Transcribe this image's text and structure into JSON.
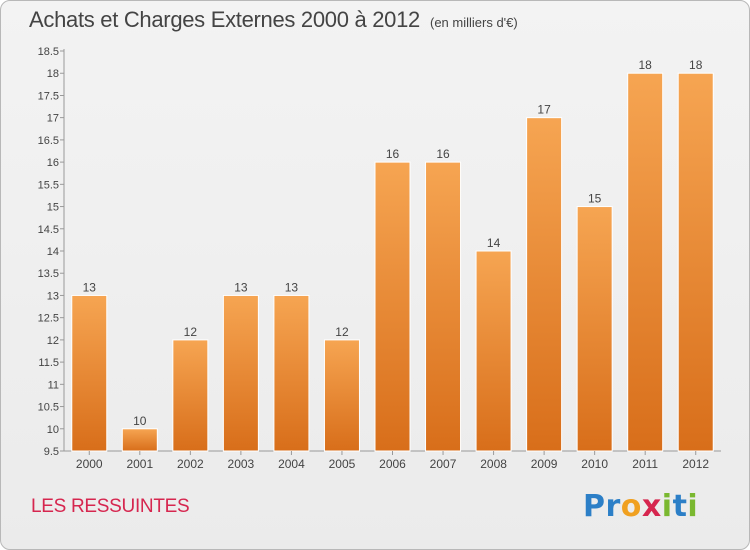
{
  "header": {
    "title": "Achats et Charges Externes 2000 à 2012",
    "unit": "(en milliers d'€)"
  },
  "footer": {
    "place": "LES RESSUINTES",
    "logo_letters": [
      "P",
      "r",
      "o",
      "x",
      "i",
      "t",
      "i"
    ],
    "logo_colors": [
      "#2c7fc7",
      "#2c7fc7",
      "#f0a020",
      "#d6264f",
      "#7ab830",
      "#2c7fc7",
      "#7ab830"
    ]
  },
  "colors": {
    "bar_light": "#f6a552",
    "bar_dark": "#d86e1a",
    "axis": "#999999",
    "text": "#444444"
  },
  "chart_data": {
    "type": "bar",
    "title": "Achats et Charges Externes 2000 à 2012",
    "subtitle": "(en milliers d'€)",
    "categories": [
      "2000",
      "2001",
      "2002",
      "2003",
      "2004",
      "2005",
      "2006",
      "2007",
      "2008",
      "2009",
      "2010",
      "2011",
      "2012"
    ],
    "values": [
      13,
      10,
      12,
      13,
      13,
      12,
      16,
      16,
      14,
      17,
      15,
      18,
      18
    ],
    "data_labels": [
      "13",
      "10",
      "12",
      "13",
      "13",
      "12",
      "16",
      "16",
      "14",
      "17",
      "15",
      "18",
      "18"
    ],
    "ylim": [
      9.5,
      18.5
    ],
    "yticks": [
      9.5,
      10,
      10.5,
      11,
      11.5,
      12,
      12.5,
      13,
      13.5,
      14,
      14.5,
      15,
      15.5,
      16,
      16.5,
      17,
      17.5,
      18,
      18.5
    ],
    "ytick_labels": [
      "9.5",
      "10",
      "10.5",
      "11",
      "11.5",
      "12",
      "12.5",
      "13",
      "13.5",
      "14",
      "14.5",
      "15",
      "15.5",
      "16",
      "16.5",
      "17",
      "17.5",
      "18",
      "18.5"
    ],
    "grid": false,
    "legend": "none"
  }
}
